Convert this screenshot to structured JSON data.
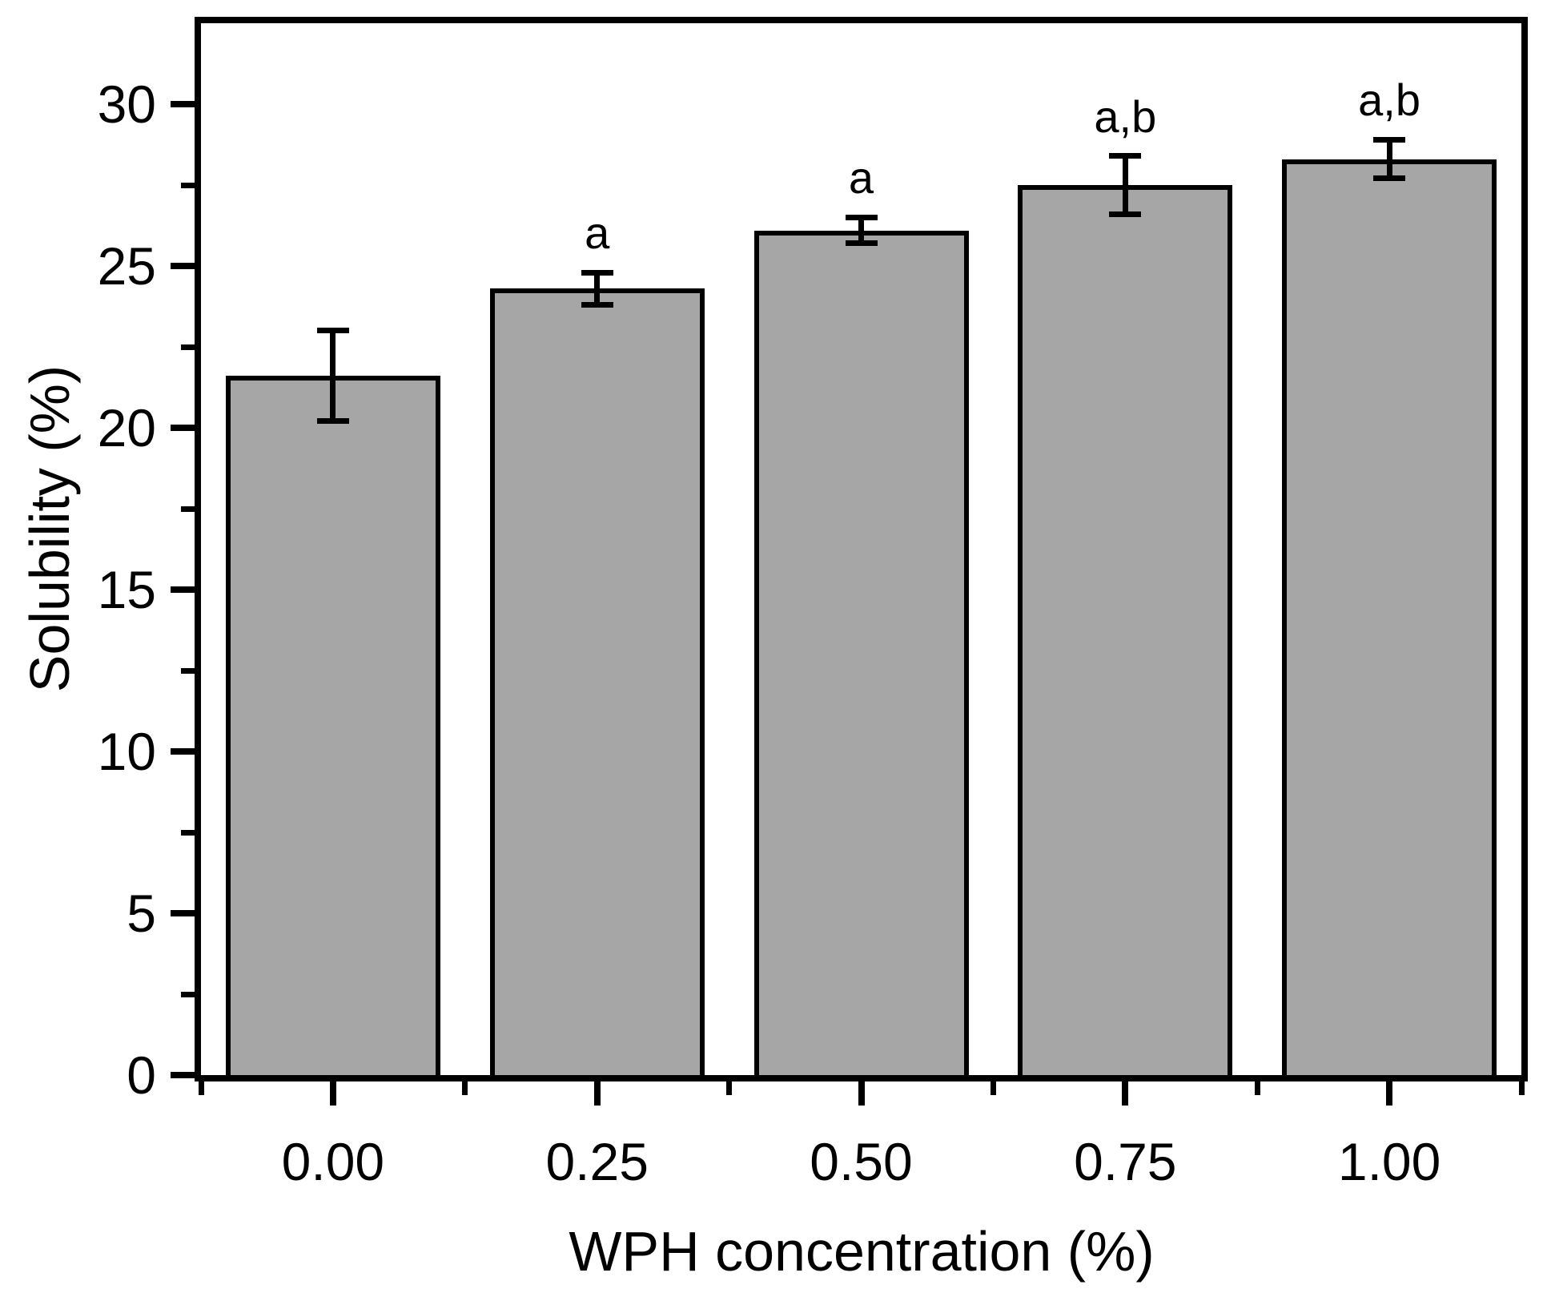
{
  "chart_data": {
    "type": "bar",
    "title": "",
    "xlabel": "WPH concentration (%)",
    "ylabel": "Solubility (%)",
    "categories": [
      "0.00",
      "0.25",
      "0.50",
      "0.75",
      "1.00"
    ],
    "values": [
      21.6,
      24.3,
      26.1,
      27.5,
      28.3
    ],
    "error_bars": [
      1.4,
      0.5,
      0.4,
      0.9,
      0.6
    ],
    "annotations": [
      "",
      "a",
      "a",
      "a,b",
      "a,b"
    ],
    "y_major_ticks": [
      0,
      5,
      10,
      15,
      20,
      25,
      30
    ],
    "y_major_tick_labels": [
      "0",
      "5",
      "10",
      "15",
      "20",
      "25",
      "30"
    ],
    "y_minor_ticks": [
      2.5,
      7.5,
      12.5,
      17.5,
      22.5,
      27.5
    ],
    "ylim": [
      0,
      32.5
    ],
    "grid": false,
    "legend_position": "none",
    "bar_color": "#a6a6a6",
    "bar_edge_color": "#000000",
    "axis_color": "#000000",
    "background_color": "#ffffff"
  }
}
